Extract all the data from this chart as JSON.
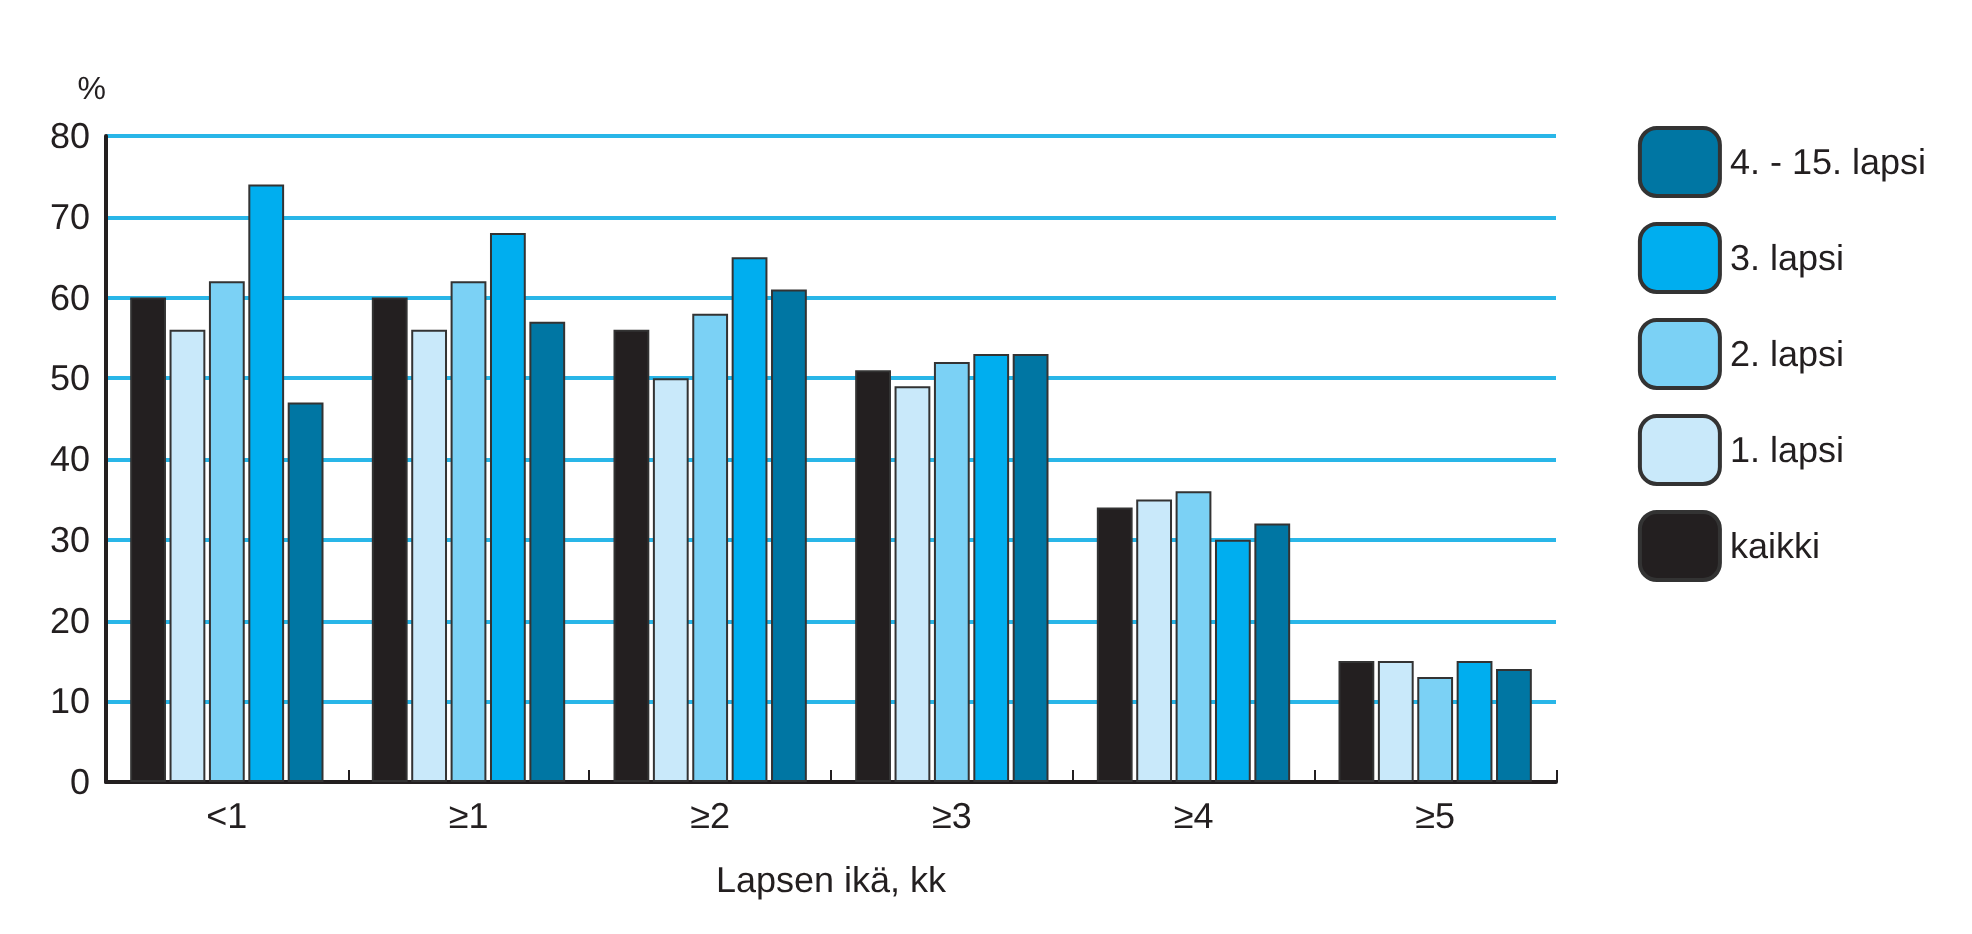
{
  "chart_data": {
    "type": "bar",
    "xlabel": "Lapsen ikä, kk",
    "ylabel": "%",
    "categories": [
      "<1",
      "≥1",
      "≥2",
      "≥3",
      "≥4",
      "≥5"
    ],
    "series": [
      {
        "name": "kaikki",
        "color": "#231f20",
        "values": [
          60,
          60,
          56,
          51,
          34,
          15
        ]
      },
      {
        "name": "1. lapsi",
        "color": "#c9e9fa",
        "values": [
          56,
          56,
          50,
          49,
          35,
          15
        ]
      },
      {
        "name": "2. lapsi",
        "color": "#7bd1f5",
        "values": [
          62,
          62,
          58,
          52,
          36,
          13
        ]
      },
      {
        "name": "3. lapsi",
        "color": "#00aeef",
        "values": [
          74,
          68,
          65,
          53,
          30,
          15
        ]
      },
      {
        "name": "4. - 15. lapsi",
        "color": "#0076a3",
        "values": [
          47,
          57,
          61,
          53,
          32,
          14
        ]
      }
    ],
    "ylim": [
      0,
      80
    ],
    "yticks": [
      0,
      10,
      20,
      30,
      40,
      50,
      60,
      70,
      80
    ],
    "grid": "y",
    "legend": "right"
  }
}
